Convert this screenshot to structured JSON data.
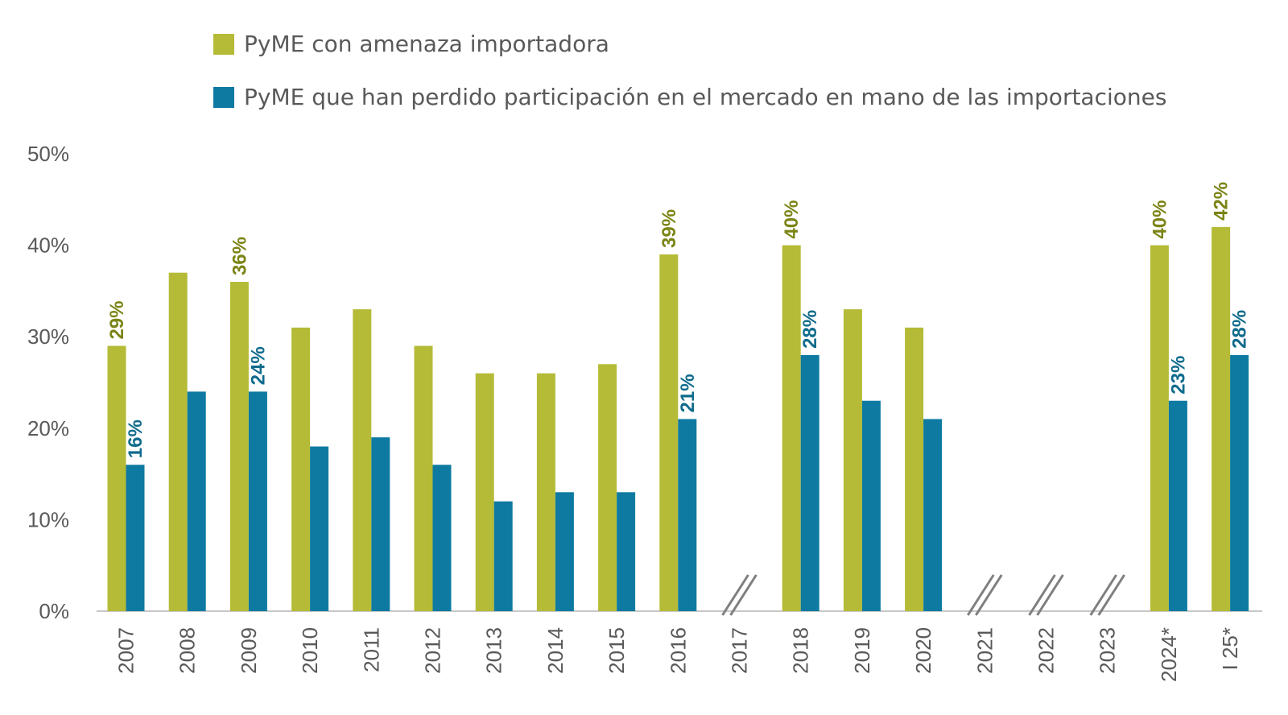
{
  "colors": {
    "series0": "#b5bb36",
    "series1": "#0e7aa1",
    "label0": "#7b8415",
    "label1": "#0f6b8c",
    "axis": "#c8c8c8",
    "break_mark": "#7f7f7f"
  },
  "legend": {
    "items": [
      {
        "label": "PyME con amenaza importadora"
      },
      {
        "label": "PyME que han perdido participación en el mercado en mano de las importaciones"
      }
    ]
  },
  "chart_data": {
    "type": "bar",
    "ylim": [
      0,
      50
    ],
    "y_ticks": [
      "0%",
      "10%",
      "20%",
      "30%",
      "40%",
      "50%"
    ],
    "categories": [
      "2007",
      "2008",
      "2009",
      "2010",
      "2011",
      "2012",
      "2013",
      "2014",
      "2015",
      "2016",
      "2017",
      "2018",
      "2019",
      "2020",
      "2021",
      "2022",
      "2023",
      "2024*",
      "I 25*"
    ],
    "series": [
      {
        "name": "PyME con amenaza importadora",
        "values": [
          29,
          37,
          36,
          31,
          33,
          29,
          26,
          26,
          27,
          39,
          null,
          40,
          33,
          31,
          null,
          null,
          null,
          40,
          42
        ],
        "data_labels": [
          "29%",
          null,
          "36%",
          null,
          null,
          null,
          null,
          null,
          null,
          "39%",
          null,
          "40%",
          null,
          null,
          null,
          null,
          null,
          "40%",
          "42%"
        ]
      },
      {
        "name": "PyME que han perdido participación en el mercado en mano de las importaciones",
        "values": [
          16,
          24,
          24,
          18,
          19,
          16,
          12,
          13,
          13,
          21,
          null,
          28,
          23,
          21,
          null,
          null,
          null,
          23,
          28
        ],
        "data_labels": [
          "16%",
          null,
          "24%",
          null,
          null,
          null,
          null,
          null,
          null,
          "21%",
          null,
          "28%",
          null,
          null,
          null,
          null,
          null,
          "23%",
          "28%"
        ]
      }
    ],
    "break_categories": [
      "2017",
      "2021",
      "2022",
      "2023"
    ],
    "legend_position": "top",
    "grid": false
  }
}
